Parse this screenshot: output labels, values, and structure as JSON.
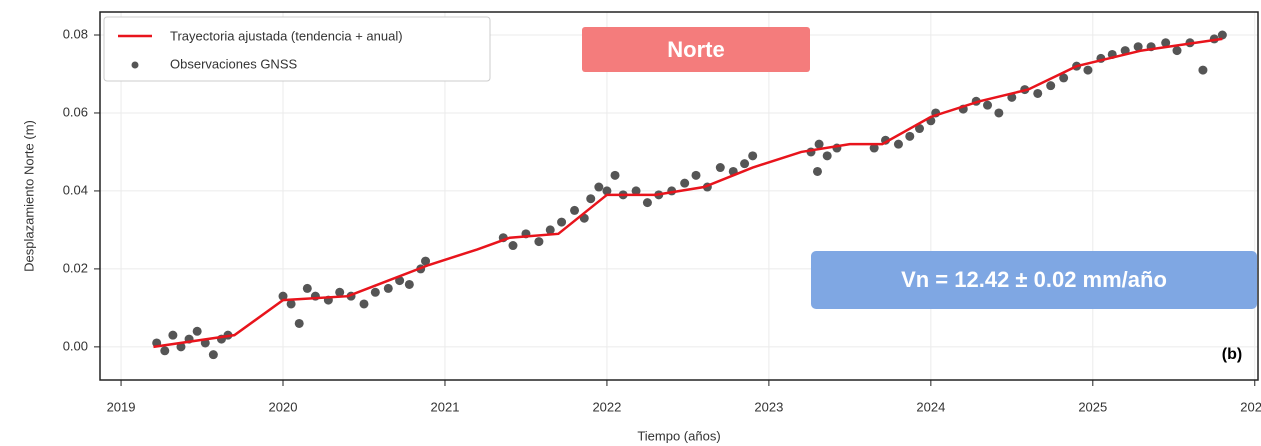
{
  "chart_data": {
    "type": "line",
    "xlabel": "Tiempo (años)",
    "ylabel": "Desplazamiento Norte (m)",
    "xlim": [
      2018.87,
      2026.02
    ],
    "ylim": [
      -0.0085,
      0.0859
    ],
    "xticks": [
      2019,
      2020,
      2021,
      2022,
      2023,
      2024,
      2025,
      2026
    ],
    "yticks": [
      {
        "value": 0,
        "label": "0.00"
      },
      {
        "value": 0.02,
        "label": "0.02"
      },
      {
        "value": 0.04,
        "label": "0.04"
      },
      {
        "value": 0.06,
        "label": "0.06"
      },
      {
        "value": 0.08,
        "label": "0.08"
      }
    ],
    "grid": true,
    "legend": "upper left",
    "annotations": [
      "Norte",
      "Vn = 12.42 ± 0.02 mm/año",
      "(b)"
    ],
    "series": [
      {
        "name": "Trayectoria ajustada (tendencia + anual)",
        "type": "line",
        "color": "#e8141c",
        "x": [
          2019.2,
          2019.7,
          2020.0,
          2020.4,
          2020.9,
          2021.2,
          2021.4,
          2021.7,
          2022.0,
          2022.3,
          2022.6,
          2022.9,
          2023.2,
          2023.5,
          2023.7,
          2024.0,
          2024.3,
          2024.6,
          2024.9,
          2025.3,
          2025.8
        ],
        "values": [
          0.0,
          0.003,
          0.012,
          0.013,
          0.021,
          0.025,
          0.028,
          0.029,
          0.039,
          0.039,
          0.041,
          0.046,
          0.05,
          0.052,
          0.052,
          0.059,
          0.063,
          0.066,
          0.072,
          0.076,
          0.079
        ]
      },
      {
        "name": "Observaciones GNSS",
        "type": "scatter",
        "color": "#555555",
        "x": [
          2019.22,
          2019.27,
          2019.32,
          2019.37,
          2019.42,
          2019.47,
          2019.52,
          2019.57,
          2019.62,
          2019.66,
          2020.0,
          2020.05,
          2020.1,
          2020.15,
          2020.2,
          2020.28,
          2020.35,
          2020.42,
          2020.5,
          2020.57,
          2020.65,
          2020.72,
          2020.78,
          2020.85,
          2020.88,
          2021.36,
          2021.42,
          2021.5,
          2021.58,
          2021.65,
          2021.72,
          2021.8,
          2021.86,
          2021.9,
          2021.95,
          2022.0,
          2022.05,
          2022.1,
          2022.18,
          2022.25,
          2022.32,
          2022.4,
          2022.48,
          2022.55,
          2022.62,
          2022.7,
          2022.78,
          2022.85,
          2022.9,
          2023.26,
          2023.31,
          2023.36,
          2023.42,
          2023.3,
          2023.65,
          2023.72,
          2023.8,
          2023.87,
          2023.93,
          2024.0,
          2024.03,
          2024.2,
          2024.28,
          2024.35,
          2024.42,
          2024.5,
          2024.58,
          2024.66,
          2024.74,
          2024.82,
          2024.9,
          2024.97,
          2025.05,
          2025.12,
          2025.2,
          2025.28,
          2025.36,
          2025.45,
          2025.52,
          2025.6,
          2025.68,
          2025.75,
          2025.8
        ],
        "values": [
          0.001,
          -0.001,
          0.003,
          0.0,
          0.002,
          0.004,
          0.001,
          -0.002,
          0.002,
          0.003,
          0.013,
          0.011,
          0.006,
          0.015,
          0.013,
          0.012,
          0.014,
          0.013,
          0.011,
          0.014,
          0.015,
          0.017,
          0.016,
          0.02,
          0.022,
          0.028,
          0.026,
          0.029,
          0.027,
          0.03,
          0.032,
          0.035,
          0.033,
          0.038,
          0.041,
          0.04,
          0.044,
          0.039,
          0.04,
          0.037,
          0.039,
          0.04,
          0.042,
          0.044,
          0.041,
          0.046,
          0.045,
          0.047,
          0.049,
          0.05,
          0.052,
          0.049,
          0.051,
          0.045,
          0.051,
          0.053,
          0.052,
          0.054,
          0.056,
          0.058,
          0.06,
          0.061,
          0.063,
          0.062,
          0.06,
          0.064,
          0.066,
          0.065,
          0.067,
          0.069,
          0.072,
          0.071,
          0.074,
          0.075,
          0.076,
          0.077,
          0.077,
          0.078,
          0.076,
          0.078,
          0.071,
          0.079,
          0.08
        ]
      }
    ]
  }
}
